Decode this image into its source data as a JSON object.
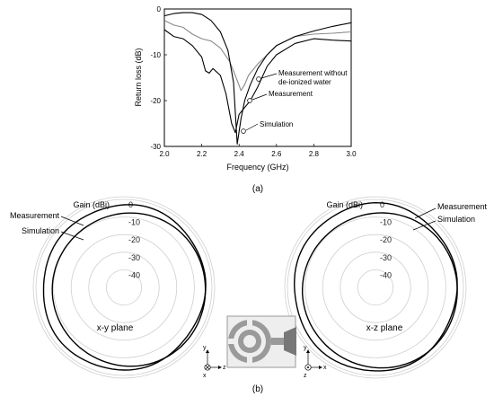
{
  "chart_data": [
    {
      "type": "line",
      "panel_label": "(a)",
      "xlabel": "Frequency (GHz)",
      "ylabel": "Return loss (dB)",
      "xlim": [
        2.0,
        3.0
      ],
      "ylim": [
        -30,
        0
      ],
      "xticks": [
        "2.0",
        "2.2",
        "2.4",
        "2.6",
        "2.8",
        "3.0"
      ],
      "yticks": [
        "0",
        "-10",
        "-20",
        "-30"
      ],
      "grid": false,
      "series": [
        {
          "name": "Measurement without de-ionized water",
          "style": "gray",
          "x": [
            2.0,
            2.05,
            2.1,
            2.15,
            2.2,
            2.25,
            2.3,
            2.35,
            2.38,
            2.41,
            2.43,
            2.45,
            2.5,
            2.55,
            2.6,
            2.7,
            2.8,
            2.9,
            3.0
          ],
          "y": [
            -2.5,
            -3.5,
            -4.0,
            -5.5,
            -6.5,
            -7.0,
            -8.5,
            -11.5,
            -14.5,
            -17.8,
            -16.5,
            -14.5,
            -12.0,
            -10.0,
            -8.0,
            -6.0,
            -5.5,
            -5.3,
            -5.0
          ]
        },
        {
          "name": "Measurement",
          "style": "black",
          "x": [
            2.0,
            2.05,
            2.1,
            2.15,
            2.2,
            2.22,
            2.24,
            2.26,
            2.3,
            2.33,
            2.36,
            2.38,
            2.4,
            2.43,
            2.46,
            2.5,
            2.55,
            2.6,
            2.7,
            2.8,
            2.9,
            3.0
          ],
          "y": [
            -4.5,
            -6.0,
            -6.5,
            -8.0,
            -10.5,
            -13.5,
            -14.0,
            -13.0,
            -14.5,
            -18.5,
            -25.0,
            -27.0,
            -23.0,
            -21.5,
            -20.0,
            -17.0,
            -12.5,
            -10.0,
            -7.5,
            -6.5,
            -6.8,
            -7.0
          ]
        },
        {
          "name": "Simulation",
          "style": "black",
          "x": [
            2.0,
            2.05,
            2.1,
            2.15,
            2.2,
            2.25,
            2.3,
            2.34,
            2.37,
            2.39,
            2.41,
            2.43,
            2.46,
            2.5,
            2.55,
            2.6,
            2.7,
            2.8,
            2.9,
            3.0
          ],
          "y": [
            -1.5,
            -1.0,
            -0.8,
            -0.8,
            -1.2,
            -2.5,
            -5.0,
            -9.0,
            -16.0,
            -29.5,
            -24.0,
            -20.0,
            -16.5,
            -13.0,
            -10.0,
            -8.0,
            -6.0,
            -4.8,
            -3.8,
            -3.0
          ]
        }
      ],
      "annotations": [
        "Measurement without",
        "de-ionized water",
        "Measurement",
        "Simulation"
      ]
    },
    {
      "type": "polar",
      "panel_label": "(b)",
      "gain_label": "Gain (dBi)",
      "rlim": [
        -50,
        0
      ],
      "rticks": [
        "0",
        "-10",
        "-20",
        "-30",
        "-40"
      ],
      "plots": [
        {
          "plane_label": "x-y plane",
          "series": [
            {
              "name": "Measurement",
              "gain_db": -3.5,
              "note": "near-omnidirectional"
            },
            {
              "name": "Simulation",
              "gain_db": -6.5,
              "note": "near-omnidirectional"
            }
          ]
        },
        {
          "plane_label": "x-z plane",
          "series": [
            {
              "name": "Measurement",
              "gain_db": -3.0,
              "note": "near-omnidirectional"
            },
            {
              "name": "Simulation",
              "gain_db": -6.0,
              "note": "near-omnidirectional"
            }
          ]
        }
      ],
      "inset_axes": {
        "y": "y",
        "x": "x",
        "z": "z"
      }
    }
  ]
}
